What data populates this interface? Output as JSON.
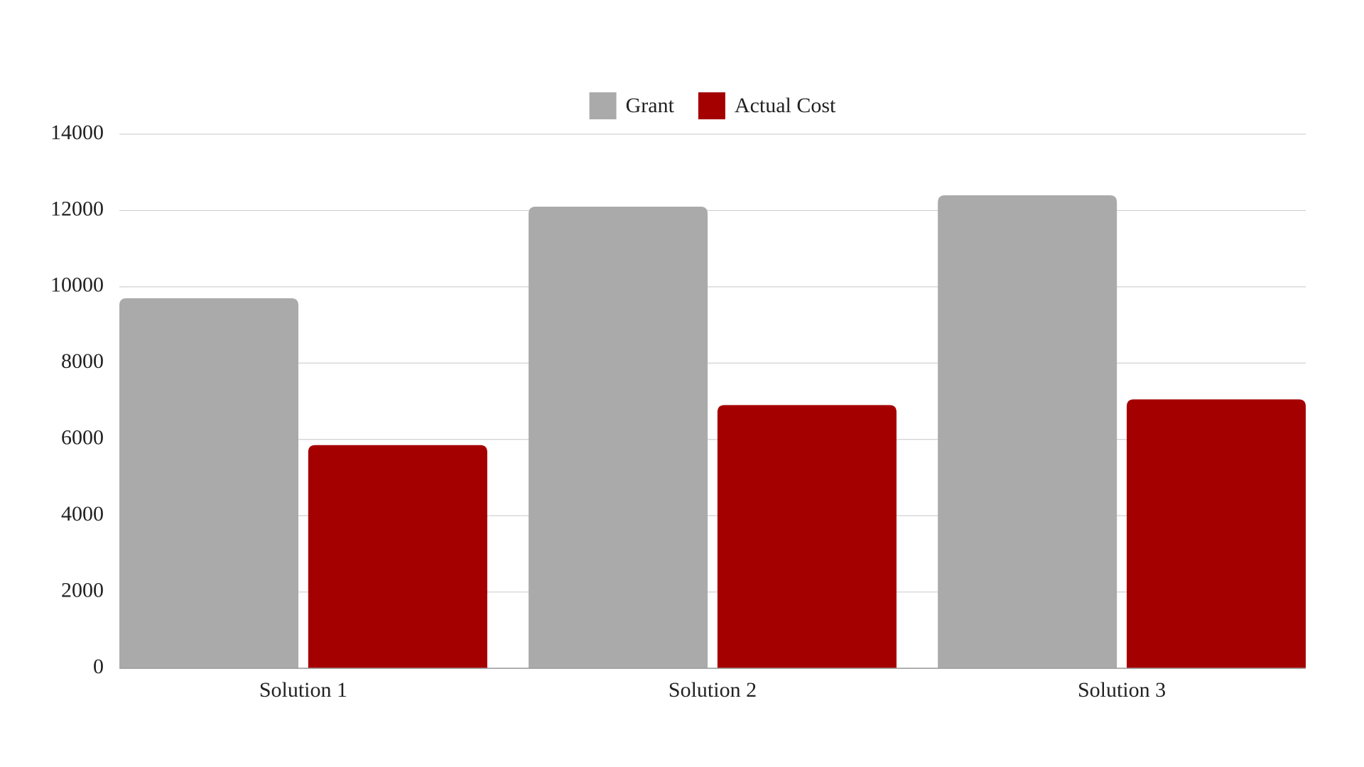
{
  "chart_data": {
    "type": "bar",
    "categories": [
      "Solution 1",
      "Solution 2",
      "Solution 3"
    ],
    "series": [
      {
        "name": "Grant",
        "color": "#aaaaaa",
        "values": [
          9700,
          12100,
          12400
        ]
      },
      {
        "name": "Actual Cost",
        "color": "#a50000",
        "values": [
          5850,
          6900,
          7050
        ]
      }
    ],
    "ylim": [
      0,
      14000
    ],
    "yticks": [
      0,
      2000,
      4000,
      6000,
      8000,
      10000,
      12000,
      14000
    ],
    "grid": true,
    "legend": "top"
  }
}
